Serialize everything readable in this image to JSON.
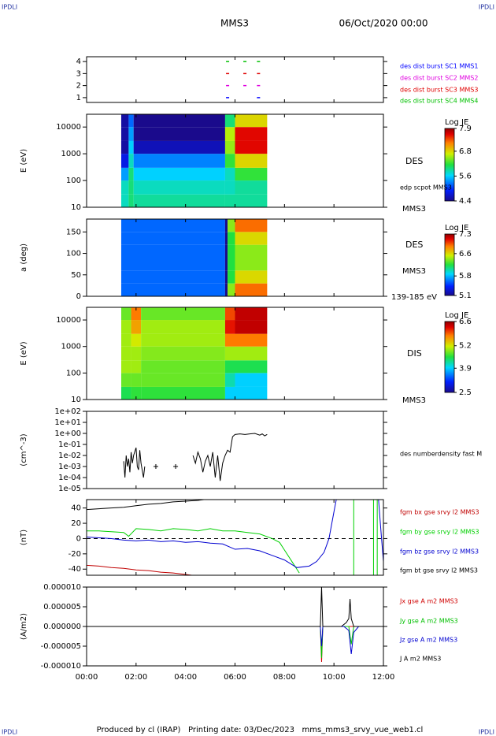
{
  "header": {
    "left": "IPDLI",
    "right": "IPDLI",
    "title": "MMS3",
    "date": "06/Oct/2020 00:00"
  },
  "footer": {
    "left": "IPDLI",
    "right": "IPDLI",
    "text": "Produced by cl (IRAP)   Printing date: 03/Dec/2023   mms_mms3_srvy_vue_web1.cl"
  },
  "chart_data": [
    {
      "type": "scatter",
      "ylim": [
        0.6,
        4.4
      ],
      "yticks": [
        1,
        2,
        3,
        4
      ],
      "series": [
        {
          "name": "des dist burst SC1 MMS1",
          "color": "#0000ff",
          "x": [
            5.7,
            6.95
          ],
          "values": [
            1,
            1
          ]
        },
        {
          "name": "des dist burst SC2 MMS2",
          "color": "#e000e0",
          "x": [
            5.7,
            6.4,
            6.95
          ],
          "values": [
            2,
            2,
            2
          ]
        },
        {
          "name": "des dist burst SC3 MMS3",
          "color": "#e00000",
          "x": [
            5.7,
            6.4,
            6.95
          ],
          "values": [
            3,
            3,
            3
          ]
        },
        {
          "name": "des dist burst SC4 MMS4",
          "color": "#00c000",
          "x": [
            5.7,
            6.4,
            6.95
          ],
          "values": [
            4,
            4,
            4
          ]
        }
      ]
    },
    {
      "type": "spectrogram",
      "ylabel": "E (eV)",
      "log": true,
      "ylim": [
        10,
        30000
      ],
      "yticks": [
        10,
        100,
        1000,
        10000
      ],
      "time_edges": [
        1.4,
        1.7,
        1.9,
        5.6,
        6.0,
        7.3
      ],
      "y_edges": [
        10,
        30,
        100,
        300,
        1000,
        3000,
        10000,
        30000
      ],
      "values": [
        [
          5.8,
          5.8,
          5.4,
          4.8,
          4.5,
          4.5,
          4.5
        ],
        [
          6.0,
          6.0,
          6.0,
          5.8,
          5.6,
          5.4,
          5.2
        ],
        [
          5.9,
          5.8,
          5.6,
          5.3,
          4.6,
          4.4,
          4.4
        ],
        [
          5.9,
          5.8,
          5.8,
          6.2,
          6.5,
          6.6,
          6.0
        ],
        [
          5.9,
          5.9,
          6.2,
          6.8,
          7.6,
          7.6,
          6.8
        ]
      ],
      "colorbar": {
        "label": "Log JE",
        "clim": [
          4.4,
          7.9
        ],
        "ticks": [
          4.4,
          5.6,
          6.8,
          7.9
        ]
      },
      "labels": [
        "DES",
        "edp scpot MMS3",
        "MMS3"
      ]
    },
    {
      "type": "spectrogram",
      "ylabel": "a (deg)",
      "log": false,
      "ylim": [
        0,
        180
      ],
      "yticks": [
        0,
        50,
        100,
        150
      ],
      "time_edges": [
        1.4,
        5.6,
        5.7,
        6.0,
        7.3
      ],
      "y_edges": [
        0,
        30,
        60,
        90,
        120,
        150,
        180
      ],
      "values": [
        [
          5.6,
          5.6,
          5.6,
          5.6,
          5.6,
          5.6
        ],
        [
          5.1,
          5.1,
          5.1,
          5.1,
          5.1,
          5.1
        ],
        [
          6.4,
          6.2,
          6.2,
          6.2,
          6.2,
          6.4
        ],
        [
          6.9,
          6.6,
          6.4,
          6.4,
          6.6,
          6.9
        ]
      ],
      "colorbar": {
        "label": "Log JE",
        "clim": [
          5.1,
          7.3
        ],
        "ticks": [
          5.1,
          5.8,
          6.6,
          7.3
        ]
      },
      "labels": [
        "DES",
        "MMS3",
        "139-185 eV"
      ]
    },
    {
      "type": "spectrogram",
      "ylabel": "E (eV)",
      "log": true,
      "ylim": [
        10,
        30000
      ],
      "yticks": [
        10,
        100,
        1000,
        10000
      ],
      "time_edges": [
        1.4,
        1.8,
        2.2,
        5.6,
        6.0,
        7.3
      ],
      "y_edges": [
        10,
        30,
        100,
        300,
        1000,
        3000,
        10000,
        30000
      ],
      "values": [
        [
          4.5,
          4.8,
          5.0,
          5.0,
          5.0,
          5.0,
          4.8
        ],
        [
          4.6,
          4.8,
          5.0,
          5.0,
          5.2,
          5.6,
          5.8
        ],
        [
          4.6,
          4.8,
          4.8,
          4.9,
          5.0,
          5.0,
          4.8
        ],
        [
          3.9,
          4.2,
          4.5,
          5.0,
          5.8,
          6.2,
          6.0
        ],
        [
          3.9,
          3.9,
          4.5,
          5.0,
          5.8,
          6.4,
          6.4
        ]
      ],
      "colorbar": {
        "label": "Log JE",
        "clim": [
          2.5,
          6.6
        ],
        "ticks": [
          2.5,
          3.9,
          5.2,
          6.6
        ]
      },
      "labels": [
        "DIS",
        "MMS3"
      ]
    },
    {
      "type": "line",
      "ylabel": "(cm^-3)",
      "log": true,
      "ylim": [
        1e-05,
        100
      ],
      "yticks": [
        {
          "value": 1e-05,
          "label": "1e-05"
        },
        {
          "value": 0.0001,
          "label": "1e-04"
        },
        {
          "value": 0.001,
          "label": "1e-03"
        },
        {
          "value": 0.01,
          "label": "1e-02"
        },
        {
          "value": 0.1,
          "label": "1e-01"
        },
        {
          "value": 1,
          "label": "1e+00"
        },
        {
          "value": 10,
          "label": "1e+01"
        },
        {
          "value": 100,
          "label": "1e+02"
        }
      ],
      "series": [
        {
          "name": "des numberdensity fast M",
          "color": "#000000",
          "x": [
            1.5,
            1.55,
            1.6,
            1.65,
            1.7,
            1.75,
            1.8,
            1.85,
            1.9,
            2.0,
            2.05,
            2.1,
            2.15,
            2.2,
            2.3,
            2.35,
            3.0,
            4.3,
            4.4,
            4.5,
            4.6,
            4.7,
            4.8,
            4.9,
            5.0,
            5.1,
            5.2,
            5.3,
            5.4,
            5.5,
            5.6,
            5.7,
            5.8,
            5.9,
            6.0,
            6.2,
            6.4,
            6.6,
            6.8,
            7.0,
            7.1,
            7.2,
            7.3
          ],
          "values": [
            0.003,
            0.0001,
            0.01,
            0.001,
            0.005,
            0.0003,
            0.02,
            0.002,
            0.01,
            0.05,
            0.001,
            0.0005,
            0.03,
            0.002,
            0.0001,
            0.001,
            null,
            0.01,
            0.002,
            0.02,
            0.005,
            0.0003,
            0.003,
            0.01,
            0.001,
            0.02,
            0.0001,
            0.01,
            5e-05,
            0.002,
            0.01,
            0.03,
            0.02,
            0.5,
            0.8,
            0.9,
            0.8,
            0.9,
            1.0,
            0.7,
            0.9,
            0.6,
            0.8
          ]
        },
        {
          "marker": "cross",
          "color": "#000000",
          "x": [
            2.8,
            3.6
          ],
          "values": [
            0.001,
            0.001
          ]
        }
      ]
    },
    {
      "type": "line",
      "ylabel": "(nT)",
      "log": false,
      "ylim": [
        -48,
        51
      ],
      "yticks": [
        -40,
        -20,
        0,
        20,
        40
      ],
      "zero_line": true,
      "series": [
        {
          "name": "fgm bx gse srvy l2 MMS3",
          "color": "#c00000",
          "x": [
            0,
            0.5,
            1,
            1.5,
            2,
            2.5,
            3,
            3.5,
            4,
            4.5
          ],
          "values": [
            -35,
            -36,
            -38,
            -39,
            -41,
            -42,
            -44,
            -45,
            -47,
            -49
          ]
        },
        {
          "name": "fgm by gse srvy l2 MMS3",
          "color": "#00d000",
          "x": [
            0,
            0.5,
            1,
            1.5,
            1.7,
            2,
            2.5,
            3,
            3.5,
            4,
            4.5,
            5,
            5.5,
            6,
            6.5,
            7,
            7.5,
            7.8,
            8,
            8.3,
            8.6,
            9,
            10.8,
            10.8,
            11,
            11.6,
            11.6,
            11.7,
            11.75,
            11.75
          ],
          "values": [
            10,
            10,
            9,
            8,
            3,
            13,
            12,
            10,
            13,
            12,
            10,
            13,
            10,
            10,
            8,
            6,
            0,
            -5,
            -15,
            -30,
            -45,
            null,
            51,
            -48,
            null,
            -48,
            51,
            null,
            51,
            -48
          ]
        },
        {
          "name": "fgm bz gse srvy l2 MMS3",
          "color": "#0000d0",
          "x": [
            0,
            0.5,
            1,
            1.5,
            2,
            2.5,
            3,
            3.5,
            4,
            4.5,
            5,
            5.5,
            6,
            6.5,
            7,
            7.5,
            8,
            8.5,
            9,
            9.3,
            9.6,
            9.8,
            10,
            10.1,
            11,
            11.8,
            11.9,
            12
          ],
          "values": [
            2,
            1,
            0,
            -2,
            -3,
            -2,
            -4,
            -3,
            -5,
            -4,
            -6,
            -7,
            -14,
            -13,
            -16,
            -22,
            -28,
            -38,
            -36,
            -30,
            -18,
            0,
            35,
            52,
            null,
            52,
            10,
            -30
          ]
        },
        {
          "name": "fgm bt gse srvy l2 MMS3",
          "color": "#000000",
          "x": [
            0,
            0.5,
            1,
            1.5,
            2,
            2.5,
            3,
            3.5,
            4,
            4.5,
            5
          ],
          "values": [
            38,
            39,
            40,
            41,
            43,
            45,
            46,
            48,
            49,
            50,
            52
          ]
        }
      ]
    },
    {
      "type": "line",
      "ylabel": "(A/m2)",
      "log": false,
      "ylim": [
        -1e-05,
        1e-05
      ],
      "yticks": [
        {
          "value": -1e-05,
          "label": "-0.000010"
        },
        {
          "value": -5e-06,
          "label": "-0.000005"
        },
        {
          "value": 0,
          "label": "0.000000"
        },
        {
          "value": 5e-06,
          "label": "0.000005"
        },
        {
          "value": 1e-05,
          "label": "0.000010"
        }
      ],
      "xlim": [
        0,
        12
      ],
      "xticks": [
        {
          "value": 0,
          "label": "00:00"
        },
        {
          "value": 2,
          "label": "02:00"
        },
        {
          "value": 4,
          "label": "04:00"
        },
        {
          "value": 6,
          "label": "06:00"
        },
        {
          "value": 8,
          "label": "08:00"
        },
        {
          "value": 10,
          "label": "10:00"
        },
        {
          "value": 12,
          "label": "12:00"
        }
      ],
      "series": [
        {
          "name": "Jx gse A m2 MMS3",
          "color": "#d00000",
          "x": [
            0,
            9.45,
            9.5,
            9.55,
            12
          ],
          "values": [
            0,
            0,
            -9e-06,
            0,
            0
          ]
        },
        {
          "name": "Jy gse A m2 MMS3",
          "color": "#00c000",
          "x": [
            0,
            9.45,
            9.5,
            9.55,
            10.6,
            10.7,
            10.8,
            12
          ],
          "values": [
            0,
            0,
            -8e-06,
            0,
            0,
            -4.5e-06,
            0,
            0
          ]
        },
        {
          "name": "Jz gse A m2 MMS3",
          "color": "#0000d0",
          "x": [
            0,
            9.45,
            9.5,
            9.55,
            10.4,
            10.6,
            10.7,
            10.8,
            11,
            12
          ],
          "values": [
            0,
            0,
            -5e-06,
            0,
            0,
            -1e-06,
            -7e-06,
            -1.5e-06,
            0,
            0
          ]
        },
        {
          "name": "J A m2 MMS3",
          "color": "#000000",
          "x": [
            0,
            9.45,
            9.5,
            9.55,
            10.3,
            10.5,
            10.6,
            10.65,
            10.7,
            10.75,
            10.8,
            11,
            12
          ],
          "values": [
            0,
            0,
            1e-05,
            0,
            0,
            1e-06,
            2e-06,
            7e-06,
            2e-06,
            1e-06,
            0,
            0,
            0
          ]
        }
      ]
    }
  ]
}
